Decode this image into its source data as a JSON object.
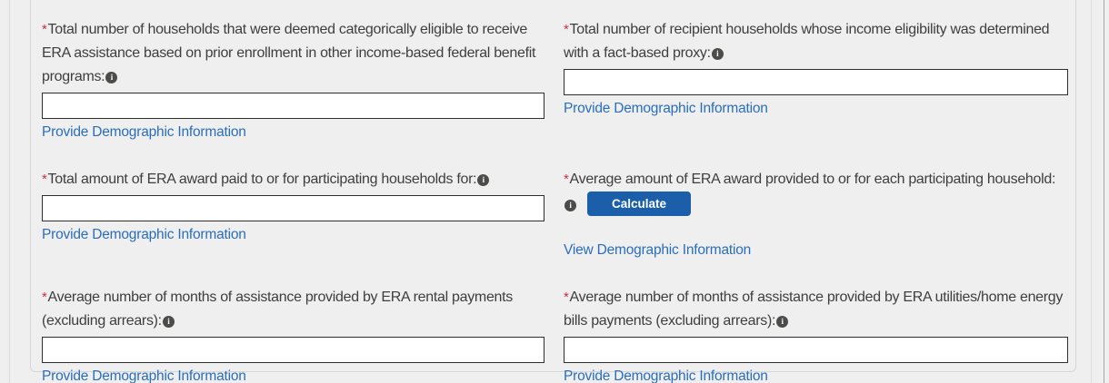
{
  "form": {
    "required_marker": "*",
    "info_icon_glyph": "i",
    "fields": [
      {
        "label": "Total number of households that were deemed categorically eligible to receive ERA assistance based on prior enrollment in other income-based federal benefit programs:",
        "value": "",
        "link_label": "Provide Demographic Information"
      },
      {
        "label": "Total number of recipient households whose income eligibility was determined with a fact-based proxy:",
        "value": "",
        "link_label": "Provide Demographic Information"
      },
      {
        "label": "Total amount of ERA award paid to or for participating households for:",
        "value": "",
        "link_label": "Provide Demographic Information"
      },
      {
        "label": "Average amount of ERA award provided to or for each participating household:",
        "button_label": "Calculate",
        "link_label": "View Demographic Information"
      },
      {
        "label": "Average number of months of assistance provided by ERA rental payments (excluding arrears):",
        "value": "",
        "link_label": "Provide Demographic Information"
      },
      {
        "label": "Average number of months of assistance provided by ERA utilities/home energy bills payments (excluding arrears):",
        "value": "",
        "link_label": "Provide Demographic Information"
      }
    ]
  },
  "colors": {
    "page_background": "#efefef",
    "label_text": "#3e3e3e",
    "link_blue": "#2a6ebb",
    "button_blue": "#1b5faa",
    "required_red": "#c9303c",
    "info_icon_gray": "#4c4c4a"
  }
}
